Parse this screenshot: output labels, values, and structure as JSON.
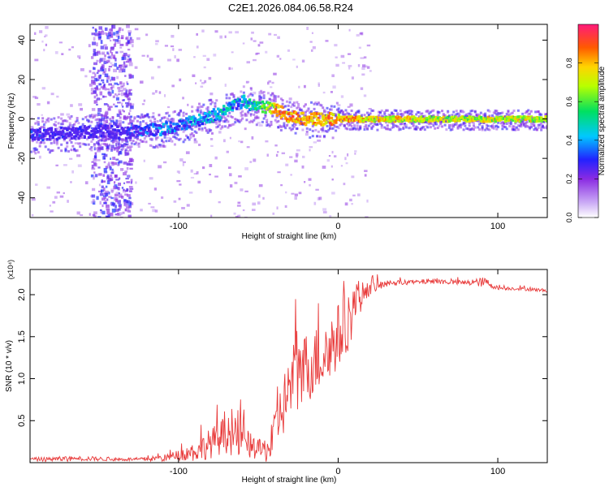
{
  "figure_title": "C2E1.2026.084.06.58.R24",
  "chart_data": [
    {
      "type": "heatmap",
      "name": "spectrogram",
      "xlabel": "Height of straight line (km)",
      "ylabel": "Frequency (Hz)",
      "xlim": [
        -193,
        131
      ],
      "ylim": [
        -50,
        48
      ],
      "xticks": [
        -100,
        0,
        100
      ],
      "xtick_labels": [
        "-100",
        "0",
        "100"
      ],
      "yticks": [
        -40,
        -20,
        0,
        20,
        40
      ],
      "ytick_labels": [
        "-40",
        "-20",
        "0",
        "20",
        "40"
      ],
      "colorbar": {
        "label": "Normalized spectral amplitude",
        "range": [
          0,
          1
        ],
        "ticks": [
          0.0,
          0.2,
          0.4,
          0.6,
          0.8
        ],
        "tick_labels": [
          "0.0",
          "0.2",
          "0.4",
          "0.6",
          "0.8"
        ]
      },
      "ridge": {
        "x": [
          -193,
          -170,
          -150,
          -135,
          -128,
          -110,
          -90,
          -75,
          -60,
          -52,
          -45,
          -38,
          -30,
          -20,
          -10,
          0,
          20,
          60,
          100,
          131
        ],
        "y": [
          -8,
          -7,
          -6,
          -7,
          -6,
          -5,
          -1,
          3,
          9,
          6,
          6,
          4,
          1,
          0,
          0,
          0,
          0,
          0,
          0,
          0
        ],
        "amplitude": [
          0.35,
          0.32,
          0.3,
          0.3,
          0.38,
          0.45,
          0.5,
          0.55,
          0.5,
          0.6,
          0.78,
          0.92,
          0.95,
          0.96,
          0.96,
          0.93,
          0.88,
          0.82,
          0.82,
          0.82
        ]
      },
      "noise_band_x": [
        -155,
        -130
      ]
    },
    {
      "type": "line",
      "name": "snr",
      "xlabel": "Height of straight line (km)",
      "ylabel": "SNR (10 * v/v)",
      "multiplier_label": "(x10⁴)",
      "xlim": [
        -193,
        131
      ],
      "ylim": [
        0,
        2.3
      ],
      "xticks": [
        -100,
        0,
        100
      ],
      "xtick_labels": [
        "-100",
        "0",
        "100"
      ],
      "yticks": [
        0.5,
        1.0,
        1.5,
        2.0
      ],
      "ytick_labels": [
        "0.5",
        "1.0",
        "1.5",
        "2.0"
      ],
      "color": "#e83a3a",
      "series": [
        {
          "name": "SNR",
          "x": [
            -193,
            -180,
            -160,
            -140,
            -125,
            -110,
            -100,
            -90,
            -80,
            -70,
            -62,
            -55,
            -48,
            -42,
            -38,
            -33,
            -28,
            -24,
            -20,
            -14,
            -8,
            -2,
            4,
            10,
            15,
            20,
            28,
            40,
            60,
            80,
            92,
            100,
            115,
            131
          ],
          "y": [
            0.04,
            0.04,
            0.05,
            0.04,
            0.04,
            0.05,
            0.09,
            0.13,
            0.23,
            0.33,
            0.28,
            0.2,
            0.14,
            0.18,
            0.5,
            0.75,
            1.0,
            1.05,
            1.12,
            1.22,
            1.3,
            1.45,
            1.6,
            1.85,
            2.0,
            2.08,
            2.12,
            2.14,
            2.16,
            2.14,
            2.15,
            2.08,
            2.07,
            2.05
          ],
          "noise": [
            0.02,
            0.03,
            0.03,
            0.02,
            0.02,
            0.04,
            0.06,
            0.12,
            0.18,
            0.22,
            0.25,
            0.15,
            0.12,
            0.2,
            0.3,
            0.4,
            0.45,
            0.5,
            0.45,
            0.4,
            0.45,
            0.4,
            0.4,
            0.3,
            0.15,
            0.08,
            0.05,
            0.03,
            0.03,
            0.03,
            0.06,
            0.02,
            0.02,
            0.02
          ]
        }
      ]
    }
  ]
}
